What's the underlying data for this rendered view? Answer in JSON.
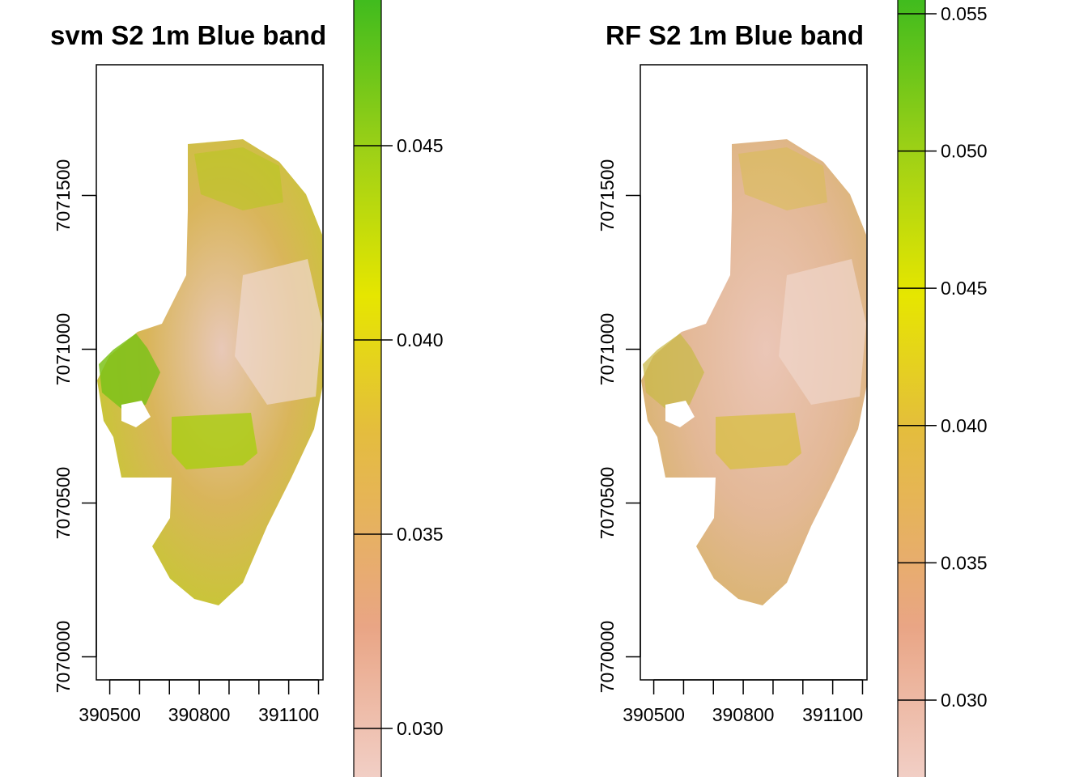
{
  "chart_data": [
    {
      "type": "heatmap",
      "title": "svm S2 1m Blue band",
      "x_ticks": [
        390500,
        390600,
        390700,
        390800,
        390900,
        391000,
        391100,
        391200
      ],
      "x_tick_labels": [
        "390500",
        "390800",
        "391100"
      ],
      "x_tick_labels_values": [
        390500,
        390800,
        391100
      ],
      "xlim": [
        390455,
        391215
      ],
      "y_ticks": [
        7070000,
        7070500,
        7071000,
        7071500
      ],
      "y_tick_labels": [
        "7070000",
        "7070500",
        "7071000",
        "7071500"
      ],
      "ylim": [
        7069925,
        7071925
      ],
      "legend": {
        "ticks": [
          0.03,
          0.035,
          0.04,
          0.045
        ],
        "tick_labels": [
          "0.030",
          "0.035",
          "0.040",
          "0.045"
        ],
        "range": [
          0.02875,
          0.04875
        ],
        "colors": [
          "#F2D1C9",
          "#E9A585",
          "#E4BD3D",
          "#E6E600",
          "#9FD116",
          "#3EBB1E"
        ]
      }
    },
    {
      "type": "heatmap",
      "title": "RF S2 1m Blue band",
      "x_ticks": [
        390500,
        390600,
        390700,
        390800,
        390900,
        391000,
        391100,
        391200
      ],
      "x_tick_labels": [
        "390500",
        "390800",
        "391100"
      ],
      "x_tick_labels_values": [
        390500,
        390800,
        391100
      ],
      "xlim": [
        390455,
        391215
      ],
      "y_ticks": [
        7070000,
        7070500,
        7071000,
        7071500
      ],
      "y_tick_labels": [
        "7070000",
        "7070500",
        "7071000",
        "7071500"
      ],
      "ylim": [
        7069925,
        7071925
      ],
      "legend": {
        "ticks": [
          0.03,
          0.035,
          0.04,
          0.045,
          0.05,
          0.055
        ],
        "tick_labels": [
          "0.030",
          "0.035",
          "0.040",
          "0.045",
          "0.050",
          "0.055"
        ],
        "range": [
          0.0272,
          0.0555
        ],
        "colors": [
          "#F2D1C9",
          "#E9A585",
          "#E4BD3D",
          "#E6E600",
          "#9FD116",
          "#3EBB1E"
        ]
      }
    }
  ]
}
